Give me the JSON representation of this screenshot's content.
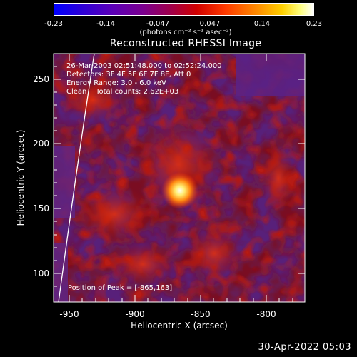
{
  "colorbar": {
    "ticks": [
      "-0.23",
      "-0.14",
      "-0.047",
      "0.047",
      "0.14",
      "0.23"
    ],
    "unit_label": "(photons cm⁻² s⁻¹ asec⁻²)"
  },
  "title": "Reconstructed RHESSI Image",
  "info": {
    "line1": "26-Mar-2003 02:51:48.000 to 02:52:24.000",
    "line2": "Detectors: 3F 4F 5F 6F 7F 8F, Att 0",
    "line3": "Energy Range: 3.0 - 6.0 keV",
    "line4": "Clean    Total counts: 2.62E+03",
    "peak": "Position of Peak = [-865,163]"
  },
  "axes": {
    "xlabel": "Heliocentric X (arcsec)",
    "ylabel": "Heliocentric Y (arcsec)",
    "xticks": [
      "-950",
      "-900",
      "-850",
      "-800"
    ],
    "yticks": [
      "100",
      "150",
      "200",
      "250"
    ]
  },
  "timestamp": "30-Apr-2022 05:03"
}
